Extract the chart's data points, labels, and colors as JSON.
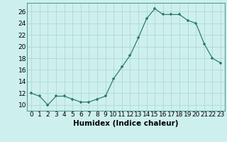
{
  "x": [
    0,
    1,
    2,
    3,
    4,
    5,
    6,
    7,
    8,
    9,
    10,
    11,
    12,
    13,
    14,
    15,
    16,
    17,
    18,
    19,
    20,
    21,
    22,
    23
  ],
  "y": [
    12,
    11.5,
    10,
    11.5,
    11.5,
    11,
    10.5,
    10.5,
    11,
    11.5,
    14.5,
    16.5,
    18.5,
    21.5,
    24.8,
    26.5,
    25.5,
    25.5,
    25.5,
    24.5,
    24,
    20.5,
    18,
    17.2
  ],
  "xlabel": "Humidex (Indice chaleur)",
  "xlim": [
    -0.5,
    23.5
  ],
  "ylim": [
    9,
    27.5
  ],
  "yticks": [
    10,
    12,
    14,
    16,
    18,
    20,
    22,
    24,
    26
  ],
  "xticks": [
    0,
    1,
    2,
    3,
    4,
    5,
    6,
    7,
    8,
    9,
    10,
    11,
    12,
    13,
    14,
    15,
    16,
    17,
    18,
    19,
    20,
    21,
    22,
    23
  ],
  "line_color": "#2e7d6e",
  "marker_color": "#2e7d6e",
  "bg_color": "#cdf0ee",
  "grid_color": "#b0d8d4",
  "tick_label_fontsize": 6.5,
  "xlabel_fontsize": 7.5
}
